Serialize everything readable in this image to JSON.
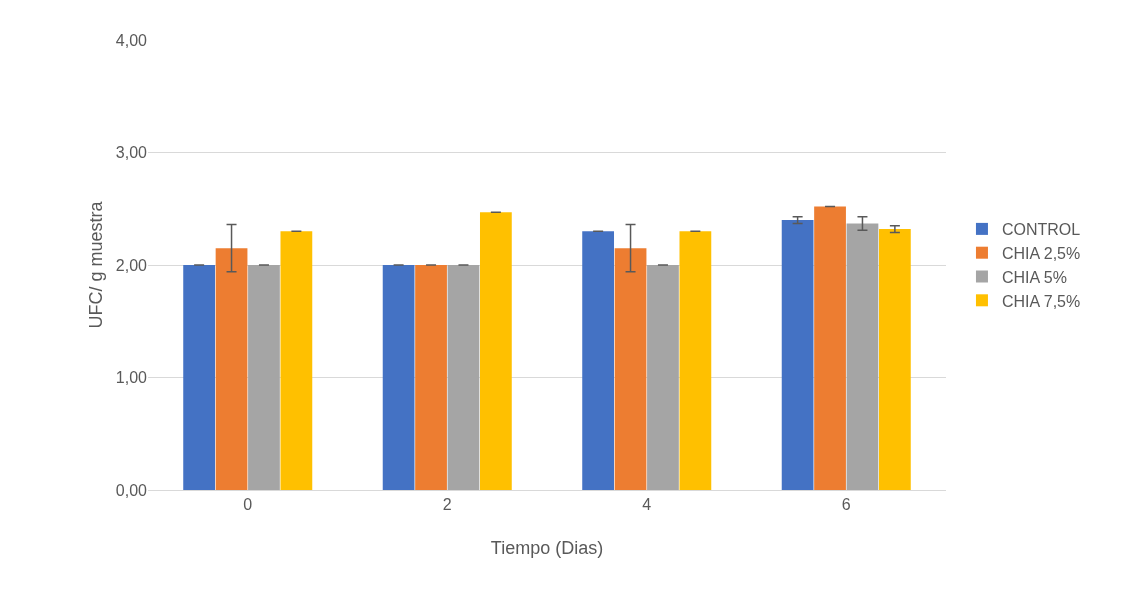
{
  "chart_data": {
    "type": "bar",
    "xlabel": "Tiempo (Dias)",
    "ylabel": "UFC/ g muestra",
    "categories": [
      "0",
      "2",
      "4",
      "6"
    ],
    "series": [
      {
        "name": "CONTROL",
        "color": "#4472c4",
        "values": [
          2.0,
          2.0,
          2.3,
          2.4
        ],
        "errors": [
          0,
          0,
          0,
          0.03
        ]
      },
      {
        "name": "CHIA 2,5%",
        "color": "#ed7d31",
        "values": [
          2.15,
          2.0,
          2.15,
          2.52
        ],
        "errors": [
          0.21,
          0,
          0.21,
          0
        ]
      },
      {
        "name": "CHIA 5%",
        "color": "#a5a5a5",
        "values": [
          2.0,
          2.0,
          2.0,
          2.37
        ],
        "errors": [
          0,
          0,
          0,
          0.06
        ]
      },
      {
        "name": "CHIA 7,5%",
        "color": "#ffc000",
        "values": [
          2.3,
          2.47,
          2.3,
          2.32
        ],
        "errors": [
          0,
          0,
          0,
          0.03
        ]
      }
    ],
    "ylim": [
      0,
      4
    ],
    "yticks": [
      {
        "value": 0,
        "label": "0,00"
      },
      {
        "value": 1,
        "label": "1,00"
      },
      {
        "value": 2,
        "label": "2,00"
      },
      {
        "value": 3,
        "label": "3,00"
      },
      {
        "value": 4,
        "label": "4,00"
      }
    ],
    "grid": "y",
    "legend": "right"
  }
}
